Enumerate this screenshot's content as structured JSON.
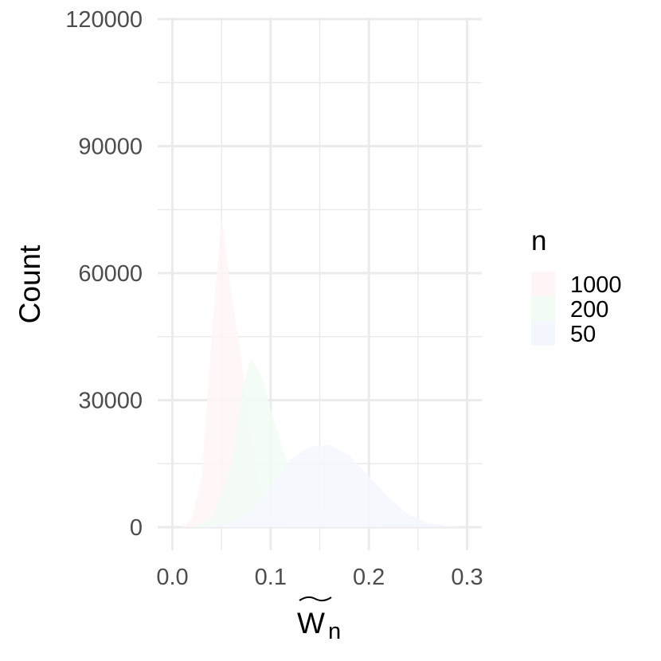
{
  "chart_data": {
    "type": "area",
    "xlabel": "W",
    "xlabel_subscript": "n",
    "ylabel": "Count",
    "xlim": [
      0.0,
      0.3
    ],
    "ylim": [
      0,
      120000
    ],
    "x_ticks": [
      "0.0",
      "0.1",
      "0.2",
      "0.3"
    ],
    "y_ticks": [
      "0",
      "30000",
      "60000",
      "90000",
      "120000"
    ],
    "grid": true,
    "legend": {
      "title": "n",
      "position": "right"
    },
    "series": [
      {
        "name": "1000",
        "color": "#fff5f6",
        "x": [
          0.01,
          0.02,
          0.03,
          0.04,
          0.05,
          0.06,
          0.07,
          0.08,
          0.09,
          0.1,
          0.11,
          0.12
        ],
        "y": [
          0,
          2000,
          12000,
          45000,
          73000,
          55000,
          40000,
          22000,
          8000,
          2500,
          800,
          0
        ]
      },
      {
        "name": "200",
        "color": "#f2fbf4",
        "x": [
          0.02,
          0.04,
          0.06,
          0.07,
          0.08,
          0.09,
          0.1,
          0.11,
          0.12,
          0.14,
          0.16,
          0.18,
          0.2,
          0.22
        ],
        "y": [
          0,
          2000,
          15000,
          32000,
          40000,
          36000,
          28000,
          20000,
          13000,
          5000,
          2000,
          700,
          200,
          0
        ]
      },
      {
        "name": "50",
        "color": "#f4f7fe",
        "x": [
          0.03,
          0.06,
          0.08,
          0.1,
          0.12,
          0.14,
          0.16,
          0.18,
          0.2,
          0.22,
          0.24,
          0.26,
          0.28,
          0.3
        ],
        "y": [
          0,
          1000,
          4000,
          10000,
          16000,
          19000,
          19500,
          17000,
          12000,
          7000,
          3000,
          1000,
          300,
          0
        ]
      }
    ]
  }
}
